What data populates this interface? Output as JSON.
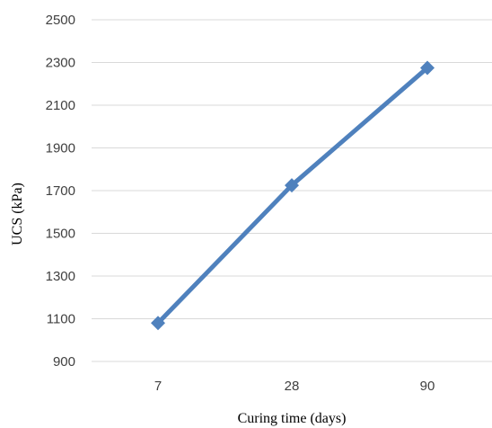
{
  "chart_data": {
    "type": "line",
    "title": "",
    "xlabel": "Curing time (days)",
    "ylabel": "UCS (kPa)",
    "categories": [
      "7",
      "28",
      "90"
    ],
    "series": [
      {
        "values": [
          1080,
          1725,
          2275
        ]
      }
    ],
    "ylim": [
      900,
      2500
    ],
    "yticks": [
      900,
      1100,
      1300,
      1500,
      1700,
      1900,
      2100,
      2300,
      2500
    ],
    "grid": "horizontal",
    "marker": "diamond",
    "colors": {
      "line": "#4F81BD",
      "grid": "#D9D9D9",
      "tick_text": "#404040"
    }
  }
}
